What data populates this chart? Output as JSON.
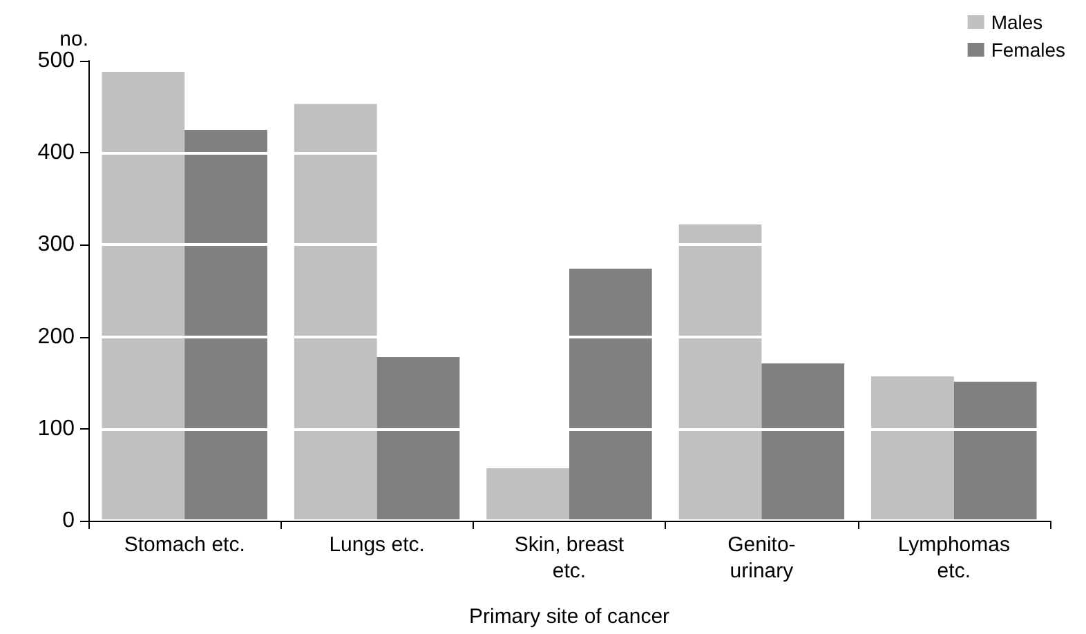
{
  "chart_data": {
    "type": "bar",
    "xlabel": "Primary site of cancer",
    "ylabel": "no.",
    "categories": [
      "Stomach etc.",
      "Lungs etc.",
      "Skin, breast\netc.",
      "Genito-\nurinary",
      "Lymphomas\netc."
    ],
    "series": [
      {
        "name": "Males",
        "color": "#c0c0c0",
        "values": [
          488,
          453,
          57,
          322,
          157
        ]
      },
      {
        "name": "Females",
        "color": "#808080",
        "values": [
          425,
          178,
          274,
          171,
          151
        ]
      }
    ],
    "ylim": [
      0,
      500
    ],
    "yticks": [
      0,
      100,
      200,
      300,
      400,
      500
    ],
    "grid": "y",
    "legend": "top right"
  }
}
